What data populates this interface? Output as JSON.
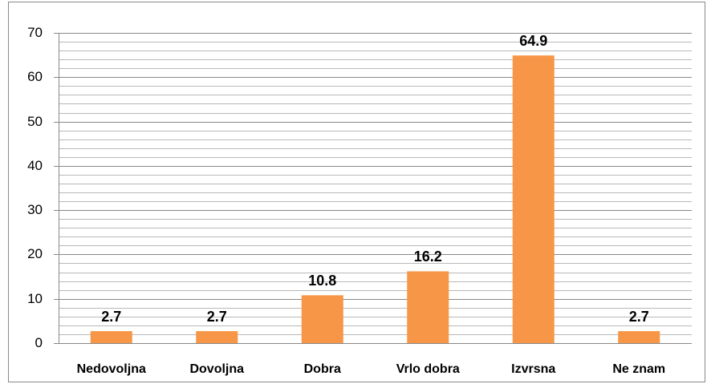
{
  "chart_data": {
    "type": "bar",
    "categories": [
      "Nedovoljna",
      "Dovoljna",
      "Dobra",
      "Vrlo dobra",
      "Izvrsna",
      "Ne znam"
    ],
    "values": [
      2.7,
      2.7,
      10.8,
      16.2,
      64.9,
      2.7
    ],
    "color": "#f79646",
    "ylim": [
      0,
      70
    ],
    "yticks": [
      0,
      10,
      20,
      30,
      40,
      50,
      60,
      70
    ],
    "minor_yticks": [
      2,
      4,
      6,
      8,
      12,
      14,
      16,
      18,
      22,
      24,
      26,
      28,
      32,
      34,
      36,
      38,
      42,
      44,
      46,
      48,
      52,
      54,
      56,
      58,
      62,
      64,
      66,
      68
    ],
    "grid": true
  }
}
